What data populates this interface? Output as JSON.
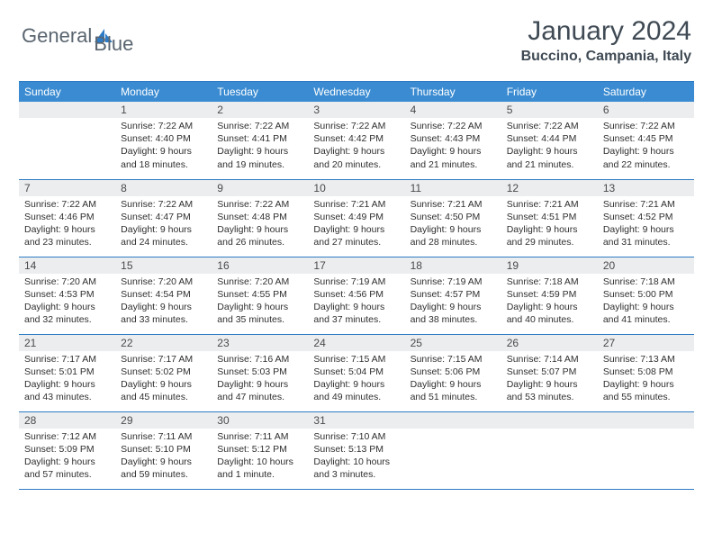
{
  "logo": {
    "text1": "General",
    "text2": "Blue"
  },
  "title": "January 2024",
  "location": "Buccino, Campania, Italy",
  "colors": {
    "header_bg": "#3a8bd1",
    "border": "#2d7bc4",
    "daynum_bg": "#ebedef",
    "text": "#2f2f2f",
    "title_text": "#3f4a54"
  },
  "weekdays": [
    "Sunday",
    "Monday",
    "Tuesday",
    "Wednesday",
    "Thursday",
    "Friday",
    "Saturday"
  ],
  "weeks": [
    [
      null,
      {
        "n": "1",
        "sr": "Sunrise: 7:22 AM",
        "ss": "Sunset: 4:40 PM",
        "dl": "Daylight: 9 hours and 18 minutes."
      },
      {
        "n": "2",
        "sr": "Sunrise: 7:22 AM",
        "ss": "Sunset: 4:41 PM",
        "dl": "Daylight: 9 hours and 19 minutes."
      },
      {
        "n": "3",
        "sr": "Sunrise: 7:22 AM",
        "ss": "Sunset: 4:42 PM",
        "dl": "Daylight: 9 hours and 20 minutes."
      },
      {
        "n": "4",
        "sr": "Sunrise: 7:22 AM",
        "ss": "Sunset: 4:43 PM",
        "dl": "Daylight: 9 hours and 21 minutes."
      },
      {
        "n": "5",
        "sr": "Sunrise: 7:22 AM",
        "ss": "Sunset: 4:44 PM",
        "dl": "Daylight: 9 hours and 21 minutes."
      },
      {
        "n": "6",
        "sr": "Sunrise: 7:22 AM",
        "ss": "Sunset: 4:45 PM",
        "dl": "Daylight: 9 hours and 22 minutes."
      }
    ],
    [
      {
        "n": "7",
        "sr": "Sunrise: 7:22 AM",
        "ss": "Sunset: 4:46 PM",
        "dl": "Daylight: 9 hours and 23 minutes."
      },
      {
        "n": "8",
        "sr": "Sunrise: 7:22 AM",
        "ss": "Sunset: 4:47 PM",
        "dl": "Daylight: 9 hours and 24 minutes."
      },
      {
        "n": "9",
        "sr": "Sunrise: 7:22 AM",
        "ss": "Sunset: 4:48 PM",
        "dl": "Daylight: 9 hours and 26 minutes."
      },
      {
        "n": "10",
        "sr": "Sunrise: 7:21 AM",
        "ss": "Sunset: 4:49 PM",
        "dl": "Daylight: 9 hours and 27 minutes."
      },
      {
        "n": "11",
        "sr": "Sunrise: 7:21 AM",
        "ss": "Sunset: 4:50 PM",
        "dl": "Daylight: 9 hours and 28 minutes."
      },
      {
        "n": "12",
        "sr": "Sunrise: 7:21 AM",
        "ss": "Sunset: 4:51 PM",
        "dl": "Daylight: 9 hours and 29 minutes."
      },
      {
        "n": "13",
        "sr": "Sunrise: 7:21 AM",
        "ss": "Sunset: 4:52 PM",
        "dl": "Daylight: 9 hours and 31 minutes."
      }
    ],
    [
      {
        "n": "14",
        "sr": "Sunrise: 7:20 AM",
        "ss": "Sunset: 4:53 PM",
        "dl": "Daylight: 9 hours and 32 minutes."
      },
      {
        "n": "15",
        "sr": "Sunrise: 7:20 AM",
        "ss": "Sunset: 4:54 PM",
        "dl": "Daylight: 9 hours and 33 minutes."
      },
      {
        "n": "16",
        "sr": "Sunrise: 7:20 AM",
        "ss": "Sunset: 4:55 PM",
        "dl": "Daylight: 9 hours and 35 minutes."
      },
      {
        "n": "17",
        "sr": "Sunrise: 7:19 AM",
        "ss": "Sunset: 4:56 PM",
        "dl": "Daylight: 9 hours and 37 minutes."
      },
      {
        "n": "18",
        "sr": "Sunrise: 7:19 AM",
        "ss": "Sunset: 4:57 PM",
        "dl": "Daylight: 9 hours and 38 minutes."
      },
      {
        "n": "19",
        "sr": "Sunrise: 7:18 AM",
        "ss": "Sunset: 4:59 PM",
        "dl": "Daylight: 9 hours and 40 minutes."
      },
      {
        "n": "20",
        "sr": "Sunrise: 7:18 AM",
        "ss": "Sunset: 5:00 PM",
        "dl": "Daylight: 9 hours and 41 minutes."
      }
    ],
    [
      {
        "n": "21",
        "sr": "Sunrise: 7:17 AM",
        "ss": "Sunset: 5:01 PM",
        "dl": "Daylight: 9 hours and 43 minutes."
      },
      {
        "n": "22",
        "sr": "Sunrise: 7:17 AM",
        "ss": "Sunset: 5:02 PM",
        "dl": "Daylight: 9 hours and 45 minutes."
      },
      {
        "n": "23",
        "sr": "Sunrise: 7:16 AM",
        "ss": "Sunset: 5:03 PM",
        "dl": "Daylight: 9 hours and 47 minutes."
      },
      {
        "n": "24",
        "sr": "Sunrise: 7:15 AM",
        "ss": "Sunset: 5:04 PM",
        "dl": "Daylight: 9 hours and 49 minutes."
      },
      {
        "n": "25",
        "sr": "Sunrise: 7:15 AM",
        "ss": "Sunset: 5:06 PM",
        "dl": "Daylight: 9 hours and 51 minutes."
      },
      {
        "n": "26",
        "sr": "Sunrise: 7:14 AM",
        "ss": "Sunset: 5:07 PM",
        "dl": "Daylight: 9 hours and 53 minutes."
      },
      {
        "n": "27",
        "sr": "Sunrise: 7:13 AM",
        "ss": "Sunset: 5:08 PM",
        "dl": "Daylight: 9 hours and 55 minutes."
      }
    ],
    [
      {
        "n": "28",
        "sr": "Sunrise: 7:12 AM",
        "ss": "Sunset: 5:09 PM",
        "dl": "Daylight: 9 hours and 57 minutes."
      },
      {
        "n": "29",
        "sr": "Sunrise: 7:11 AM",
        "ss": "Sunset: 5:10 PM",
        "dl": "Daylight: 9 hours and 59 minutes."
      },
      {
        "n": "30",
        "sr": "Sunrise: 7:11 AM",
        "ss": "Sunset: 5:12 PM",
        "dl": "Daylight: 10 hours and 1 minute."
      },
      {
        "n": "31",
        "sr": "Sunrise: 7:10 AM",
        "ss": "Sunset: 5:13 PM",
        "dl": "Daylight: 10 hours and 3 minutes."
      },
      null,
      null,
      null
    ]
  ]
}
